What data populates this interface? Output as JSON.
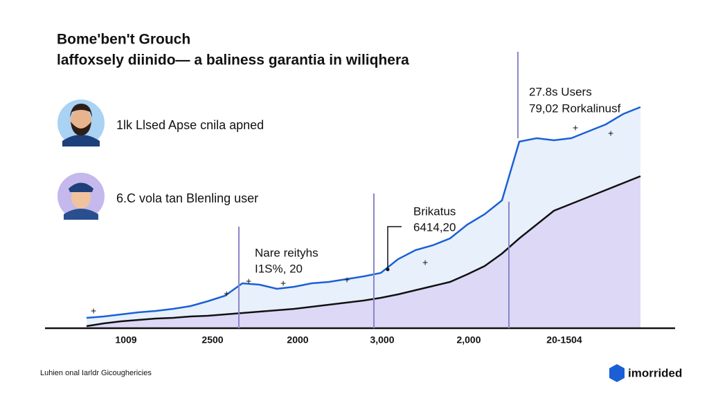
{
  "chart_data": {
    "type": "line",
    "title": "Bome'ben't Grouch",
    "subtitle": "laffoxsely diinido— a baliness garantia in wiliqhera",
    "items": [
      "1lk Llsed Apse cnila apned",
      "6.C vola tan Blenling user"
    ],
    "annotations": [
      "Nare reityhs",
      "I1S%, 20",
      "Brikatus",
      "6414,20",
      "27.8s Users",
      "79,02 Rorkalinusf"
    ],
    "x_labels": [
      "1009",
      "2500",
      "2000",
      "3,000",
      "2,000",
      "20-1504"
    ],
    "footer": "Luhien onal Iarldr Gicoughericies",
    "logo": "imorrided",
    "ylim": [
      0,
      100
    ],
    "series": [
      {
        "color": "#1a5fd6",
        "fill": "#e3edfa",
        "values": [
          3.75,
          4.25,
          5,
          5.75,
          6.25,
          7,
          8,
          9.75,
          11.75,
          16.25,
          15.75,
          14.25,
          15,
          16.25,
          16.75,
          17.75,
          18.75,
          20,
          25,
          28.25,
          30,
          32.5,
          37.5,
          41.25,
          46.25,
          67.5,
          68.75,
          68,
          68.75,
          71.25,
          73.75,
          77.5,
          80
        ]
      },
      {
        "color": "#111111",
        "fill": "#d9d4f5",
        "values": [
          0.75,
          1.75,
          2.5,
          3,
          3.5,
          3.75,
          4.25,
          4.5,
          5,
          5.5,
          6,
          6.5,
          7,
          7.75,
          8.5,
          9.25,
          10,
          11,
          12.25,
          13.75,
          15.25,
          16.75,
          19.5,
          22.5,
          27,
          32.5,
          37.5,
          42.5,
          45,
          47.5,
          50,
          52.5,
          55
        ]
      }
    ]
  }
}
